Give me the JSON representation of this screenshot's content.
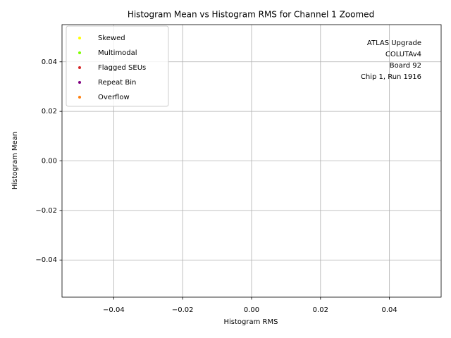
{
  "chart_data": {
    "type": "scatter",
    "title": "Histogram Mean vs Histogram RMS for Channel 1 Zoomed",
    "x_label": "Histogram RMS",
    "y_label": "Histogram Mean",
    "xlim": [
      -0.055,
      0.055
    ],
    "ylim": [
      -0.055,
      0.055
    ],
    "xticks": [
      {
        "value": -0.04,
        "label": "−0.04"
      },
      {
        "value": -0.02,
        "label": "−0.02"
      },
      {
        "value": 0,
        "label": "0.00"
      },
      {
        "value": 0.02,
        "label": "0.02"
      },
      {
        "value": 0.04,
        "label": "0.04"
      }
    ],
    "yticks": [
      {
        "value": -0.04,
        "label": "−0.04"
      },
      {
        "value": -0.02,
        "label": "−0.02"
      },
      {
        "value": 0,
        "label": "0.00"
      },
      {
        "value": 0.02,
        "label": "0.02"
      },
      {
        "value": 0.04,
        "label": "0.04"
      }
    ],
    "grid": true,
    "legend_position": "upper left",
    "annotation": [
      "ATLAS Upgrade",
      "COLUTAv4",
      "Board 92",
      "Chip 1, Run 1916"
    ],
    "series": [
      {
        "name": "Skewed",
        "color": "#ffff00",
        "x": [],
        "values": []
      },
      {
        "name": "Multimodal",
        "color": "#7fff00",
        "x": [],
        "values": []
      },
      {
        "name": "Flagged SEUs",
        "color": "#d62728",
        "x": [],
        "values": []
      },
      {
        "name": "Repeat Bin",
        "color": "#800080",
        "x": [],
        "values": []
      },
      {
        "name": "Overflow",
        "color": "#ff7f0e",
        "x": [],
        "values": []
      }
    ]
  }
}
